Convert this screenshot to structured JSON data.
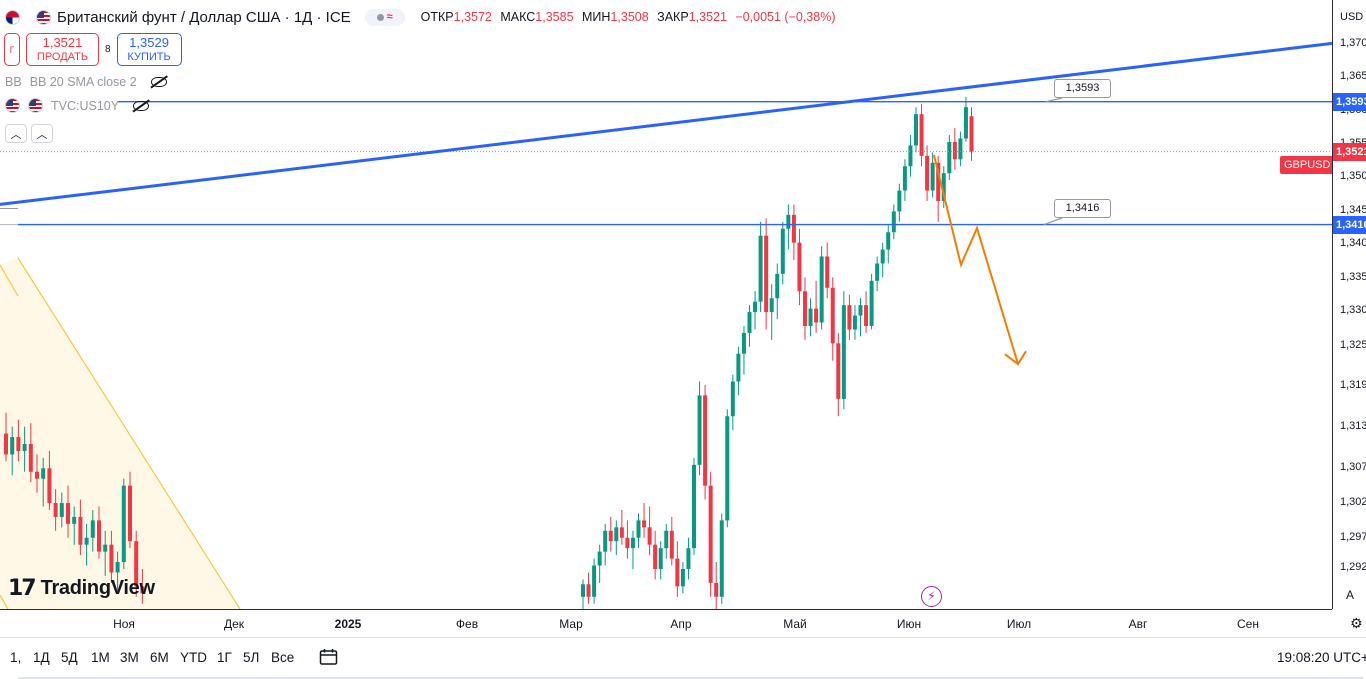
{
  "header": {
    "symbol_title": "Британский фунт / Доллар США · 1Д · ICE",
    "eq_icon": "≈",
    "ohlc": [
      {
        "label": "ОТКР",
        "value": "1,3572"
      },
      {
        "label": "МАКС",
        "value": "1,3585"
      },
      {
        "label": "МИН",
        "value": "1,3508"
      },
      {
        "label": "ЗАКР",
        "value": "1,3521"
      },
      {
        "label": "",
        "value": "−0,0051 (−0,38%)"
      }
    ]
  },
  "trade": {
    "small_btn": "Г",
    "sell_price": "1,3521",
    "sell_label": "ПРОДАТЬ",
    "spread": "8",
    "buy_price": "1,3529",
    "buy_label": "КУПИТЬ"
  },
  "indicators": [
    {
      "prefix": "BB",
      "label": "BB 20 SMA close 2"
    },
    {
      "prefix": "",
      "label": "TVC:US10Y"
    }
  ],
  "price_axis": {
    "currency": "USD",
    "ticks": [
      "1,370",
      "1,365",
      "1,360",
      "1,355",
      "1,350",
      "1,345",
      "1,340",
      "1,335",
      "1,330",
      "1,325",
      "1,319",
      "1,313",
      "1,307",
      "1,302",
      "1,297",
      "1,292"
    ],
    "labels": [
      {
        "text": "1,3593",
        "color": "blue"
      },
      {
        "text": "1,3521",
        "color": "red"
      },
      {
        "text": "1,3416",
        "color": "blue"
      }
    ],
    "auto_button": "A"
  },
  "symbol_tag": "GBPUSD",
  "callouts": [
    "1,3593",
    "1,3416"
  ],
  "time_axis": [
    {
      "label": "Ноя",
      "bold": false
    },
    {
      "label": "Дек",
      "bold": false
    },
    {
      "label": "2025",
      "bold": true
    },
    {
      "label": "Фев",
      "bold": false
    },
    {
      "label": "Мар",
      "bold": false
    },
    {
      "label": "Апр",
      "bold": false
    },
    {
      "label": "Май",
      "bold": false
    },
    {
      "label": "Июн",
      "bold": false
    },
    {
      "label": "Июл",
      "bold": false
    },
    {
      "label": "Авг",
      "bold": false
    },
    {
      "label": "Сен",
      "bold": false
    }
  ],
  "bottom_bar": {
    "ranges": [
      "1,",
      "1Д",
      "5Д",
      "1М",
      "3М",
      "6М",
      "YTD",
      "1Г",
      "5Л",
      "Все"
    ],
    "clock": "19:08:20 UTC+"
  },
  "branding": {
    "text": "TradingView",
    "mark": "17"
  },
  "colors": {
    "up": "#089981",
    "down": "#f23645",
    "trendline": "#2962ff",
    "hline": "#2962ff",
    "forecast": "#f57c00",
    "channel": "#f5c842"
  },
  "chart_data": {
    "type": "candlestick",
    "title": "Британский фунт / Доллар США · 1Д · ICE",
    "ylim": [
      1.287,
      1.372
    ],
    "x_axis_labels": [
      "Ноя",
      "Дек",
      "2025",
      "Фев",
      "Мар",
      "Апр",
      "Май",
      "Июн",
      "Июл",
      "Авг",
      "Сен"
    ],
    "horizontal_lines": [
      1.3593,
      1.3416
    ],
    "trendline": {
      "start": {
        "date": "2024-11-11",
        "price": 1.3445
      },
      "end": {
        "date": "2025-09-19",
        "price": 1.3677
      }
    },
    "forecast_path": [
      {
        "date": "2025-06-09",
        "price": 1.3516
      },
      {
        "date": "2025-06-21",
        "price": 1.3358
      },
      {
        "date": "2025-06-25",
        "price": 1.3411
      },
      {
        "date": "2025-07-09",
        "price": 1.3215
      }
    ],
    "candles_segment_a": [
      {
        "o": 1.3115,
        "h": 1.3145,
        "l": 1.3075,
        "c": 1.3085
      },
      {
        "o": 1.3085,
        "h": 1.3125,
        "l": 1.3055,
        "c": 1.311
      },
      {
        "o": 1.311,
        "h": 1.3135,
        "l": 1.3075,
        "c": 1.309
      },
      {
        "o": 1.309,
        "h": 1.3125,
        "l": 1.306,
        "c": 1.31
      },
      {
        "o": 1.31,
        "h": 1.313,
        "l": 1.3045,
        "c": 1.306
      },
      {
        "o": 1.306,
        "h": 1.3085,
        "l": 1.303,
        "c": 1.305
      },
      {
        "o": 1.305,
        "h": 1.308,
        "l": 1.301,
        "c": 1.3065
      },
      {
        "o": 1.3065,
        "h": 1.309,
        "l": 1.3005,
        "c": 1.3015
      },
      {
        "o": 1.3015,
        "h": 1.3035,
        "l": 1.2975,
        "c": 1.2995
      },
      {
        "o": 1.2995,
        "h": 1.303,
        "l": 1.298,
        "c": 1.3015
      },
      {
        "o": 1.3015,
        "h": 1.304,
        "l": 1.2965,
        "c": 1.2985
      },
      {
        "o": 1.2985,
        "h": 1.301,
        "l": 1.2955,
        "c": 1.2995
      },
      {
        "o": 1.2995,
        "h": 1.302,
        "l": 1.294,
        "c": 1.2955
      },
      {
        "o": 1.2955,
        "h": 1.2985,
        "l": 1.2925,
        "c": 1.2965
      },
      {
        "o": 1.2965,
        "h": 1.3005,
        "l": 1.2945,
        "c": 1.299
      },
      {
        "o": 1.299,
        "h": 1.301,
        "l": 1.2935,
        "c": 1.2945
      },
      {
        "o": 1.2945,
        "h": 1.2975,
        "l": 1.291,
        "c": 1.2955
      },
      {
        "o": 1.2955,
        "h": 1.2975,
        "l": 1.29,
        "c": 1.2915
      },
      {
        "o": 1.2915,
        "h": 1.2945,
        "l": 1.2885,
        "c": 1.293
      },
      {
        "o": 1.293,
        "h": 1.305,
        "l": 1.292,
        "c": 1.304
      },
      {
        "o": 1.304,
        "h": 1.306,
        "l": 1.295,
        "c": 1.296
      },
      {
        "o": 1.296,
        "h": 1.2975,
        "l": 1.288,
        "c": 1.2895
      },
      {
        "o": 1.2895,
        "h": 1.292,
        "l": 1.287,
        "c": 1.2885
      }
    ],
    "candles_segment_b": [
      {
        "o": 1.288,
        "h": 1.2905,
        "l": 1.286,
        "c": 1.2898
      },
      {
        "o": 1.2898,
        "h": 1.2915,
        "l": 1.287,
        "c": 1.288
      },
      {
        "o": 1.288,
        "h": 1.2935,
        "l": 1.287,
        "c": 1.2925
      },
      {
        "o": 1.2925,
        "h": 1.2955,
        "l": 1.29,
        "c": 1.2945
      },
      {
        "o": 1.2945,
        "h": 1.2985,
        "l": 1.2925,
        "c": 1.2975
      },
      {
        "o": 1.2975,
        "h": 1.2995,
        "l": 1.2945,
        "c": 1.296
      },
      {
        "o": 1.296,
        "h": 1.299,
        "l": 1.294,
        "c": 1.298
      },
      {
        "o": 1.298,
        "h": 1.3005,
        "l": 1.2955,
        "c": 1.2965
      },
      {
        "o": 1.2965,
        "h": 1.299,
        "l": 1.2935,
        "c": 1.295
      },
      {
        "o": 1.295,
        "h": 1.2975,
        "l": 1.292,
        "c": 1.2965
      },
      {
        "o": 1.2965,
        "h": 1.3,
        "l": 1.295,
        "c": 1.299
      },
      {
        "o": 1.299,
        "h": 1.3015,
        "l": 1.2965,
        "c": 1.298
      },
      {
        "o": 1.298,
        "h": 1.301,
        "l": 1.294,
        "c": 1.2955
      },
      {
        "o": 1.2955,
        "h": 1.2975,
        "l": 1.2905,
        "c": 1.292
      },
      {
        "o": 1.292,
        "h": 1.296,
        "l": 1.2905,
        "c": 1.295
      },
      {
        "o": 1.295,
        "h": 1.2985,
        "l": 1.2935,
        "c": 1.2975
      },
      {
        "o": 1.2975,
        "h": 1.2995,
        "l": 1.2925,
        "c": 1.2935
      },
      {
        "o": 1.2935,
        "h": 1.296,
        "l": 1.288,
        "c": 1.2895
      },
      {
        "o": 1.2895,
        "h": 1.293,
        "l": 1.2885,
        "c": 1.292
      },
      {
        "o": 1.292,
        "h": 1.2965,
        "l": 1.2905,
        "c": 1.295
      },
      {
        "o": 1.295,
        "h": 1.308,
        "l": 1.294,
        "c": 1.307
      },
      {
        "o": 1.307,
        "h": 1.319,
        "l": 1.3055,
        "c": 1.317
      },
      {
        "o": 1.317,
        "h": 1.3185,
        "l": 1.302,
        "c": 1.304
      },
      {
        "o": 1.304,
        "h": 1.306,
        "l": 1.288,
        "c": 1.29
      },
      {
        "o": 1.29,
        "h": 1.293,
        "l": 1.286,
        "c": 1.288
      },
      {
        "o": 1.288,
        "h": 1.3,
        "l": 1.287,
        "c": 1.299
      },
      {
        "o": 1.299,
        "h": 1.315,
        "l": 1.298,
        "c": 1.314
      },
      {
        "o": 1.314,
        "h": 1.32,
        "l": 1.312,
        "c": 1.319
      },
      {
        "o": 1.319,
        "h": 1.324,
        "l": 1.317,
        "c": 1.323
      },
      {
        "o": 1.323,
        "h": 1.327,
        "l": 1.32,
        "c": 1.326
      },
      {
        "o": 1.326,
        "h": 1.33,
        "l": 1.324,
        "c": 1.329
      },
      {
        "o": 1.329,
        "h": 1.332,
        "l": 1.3265,
        "c": 1.3305
      },
      {
        "o": 1.3305,
        "h": 1.342,
        "l": 1.329,
        "c": 1.34
      },
      {
        "o": 1.34,
        "h": 1.3425,
        "l": 1.3265,
        "c": 1.329
      },
      {
        "o": 1.329,
        "h": 1.333,
        "l": 1.325,
        "c": 1.331
      },
      {
        "o": 1.331,
        "h": 1.336,
        "l": 1.328,
        "c": 1.3345
      },
      {
        "o": 1.3345,
        "h": 1.342,
        "l": 1.333,
        "c": 1.341
      },
      {
        "o": 1.341,
        "h": 1.3445,
        "l": 1.338,
        "c": 1.343
      },
      {
        "o": 1.343,
        "h": 1.3445,
        "l": 1.3365,
        "c": 1.339
      },
      {
        "o": 1.339,
        "h": 1.341,
        "l": 1.33,
        "c": 1.332
      },
      {
        "o": 1.332,
        "h": 1.334,
        "l": 1.325,
        "c": 1.327
      },
      {
        "o": 1.327,
        "h": 1.331,
        "l": 1.3255,
        "c": 1.3295
      },
      {
        "o": 1.3295,
        "h": 1.3335,
        "l": 1.326,
        "c": 1.3275
      },
      {
        "o": 1.3275,
        "h": 1.3385,
        "l": 1.3265,
        "c": 1.337
      },
      {
        "o": 1.337,
        "h": 1.339,
        "l": 1.331,
        "c": 1.3325
      },
      {
        "o": 1.3325,
        "h": 1.334,
        "l": 1.322,
        "c": 1.3245
      },
      {
        "o": 1.3245,
        "h": 1.326,
        "l": 1.314,
        "c": 1.3165
      },
      {
        "o": 1.3165,
        "h": 1.332,
        "l": 1.315,
        "c": 1.33
      },
      {
        "o": 1.33,
        "h": 1.3315,
        "l": 1.325,
        "c": 1.3265
      },
      {
        "o": 1.3265,
        "h": 1.33,
        "l": 1.325,
        "c": 1.3285
      },
      {
        "o": 1.3285,
        "h": 1.331,
        "l": 1.3255,
        "c": 1.33
      },
      {
        "o": 1.33,
        "h": 1.332,
        "l": 1.326,
        "c": 1.327
      },
      {
        "o": 1.327,
        "h": 1.3345,
        "l": 1.3265,
        "c": 1.3335
      },
      {
        "o": 1.3335,
        "h": 1.337,
        "l": 1.332,
        "c": 1.336
      },
      {
        "o": 1.336,
        "h": 1.339,
        "l": 1.334,
        "c": 1.338
      },
      {
        "o": 1.338,
        "h": 1.3415,
        "l": 1.336,
        "c": 1.3405
      },
      {
        "o": 1.3405,
        "h": 1.3445,
        "l": 1.3395,
        "c": 1.3435
      },
      {
        "o": 1.3435,
        "h": 1.3475,
        "l": 1.342,
        "c": 1.3465
      },
      {
        "o": 1.3465,
        "h": 1.351,
        "l": 1.345,
        "c": 1.35
      },
      {
        "o": 1.35,
        "h": 1.3545,
        "l": 1.3485,
        "c": 1.353
      },
      {
        "o": 1.353,
        "h": 1.3585,
        "l": 1.352,
        "c": 1.3575
      },
      {
        "o": 1.3575,
        "h": 1.359,
        "l": 1.35,
        "c": 1.3515
      },
      {
        "o": 1.3515,
        "h": 1.353,
        "l": 1.345,
        "c": 1.3465
      },
      {
        "o": 1.3465,
        "h": 1.352,
        "l": 1.3455,
        "c": 1.3505
      },
      {
        "o": 1.3505,
        "h": 1.3515,
        "l": 1.342,
        "c": 1.345
      },
      {
        "o": 1.345,
        "h": 1.35,
        "l": 1.344,
        "c": 1.349
      },
      {
        "o": 1.349,
        "h": 1.3545,
        "l": 1.348,
        "c": 1.3535
      },
      {
        "o": 1.3535,
        "h": 1.3555,
        "l": 1.3495,
        "c": 1.351
      },
      {
        "o": 1.351,
        "h": 1.355,
        "l": 1.35,
        "c": 1.354
      },
      {
        "o": 1.354,
        "h": 1.36,
        "l": 1.3535,
        "c": 1.3585
      },
      {
        "o": 1.3572,
        "h": 1.3585,
        "l": 1.3508,
        "c": 1.3521
      }
    ]
  }
}
